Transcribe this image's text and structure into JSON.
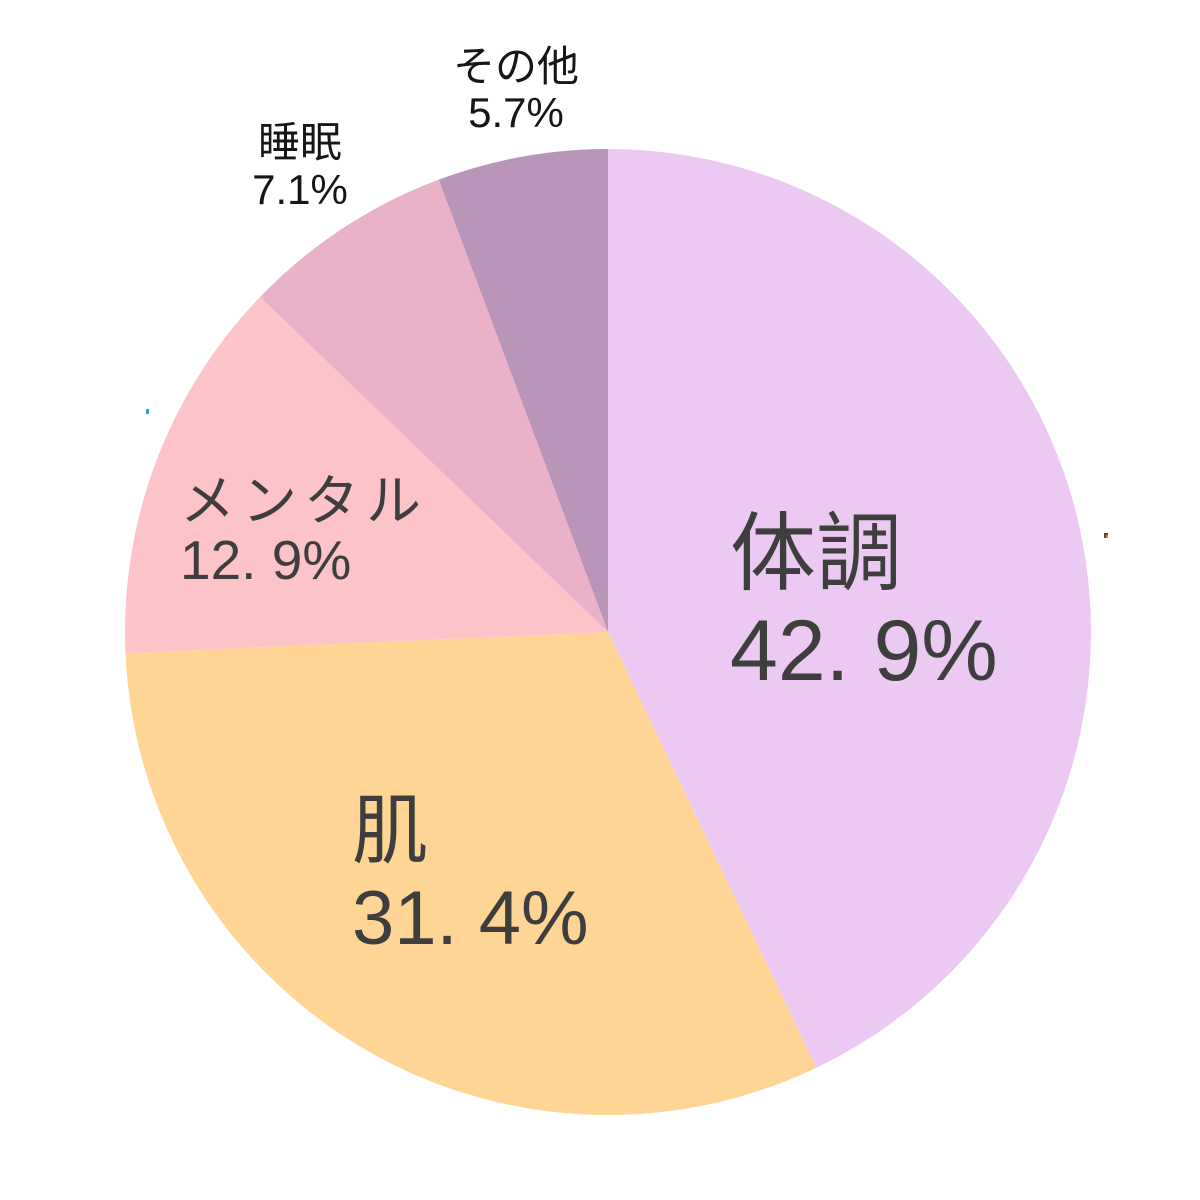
{
  "chart_data": {
    "type": "pie",
    "title": "",
    "categories": [
      "体調",
      "肌",
      "メンタル",
      "睡眠",
      "その他"
    ],
    "values": [
      42.9,
      31.4,
      12.9,
      7.1,
      5.7
    ],
    "unit": "%",
    "start_angle_deg": 0,
    "direction": "clockwise",
    "colors": [
      "#ecc9f2",
      "#fed594",
      "#fcc4c8",
      "#e9b2c9",
      "#b996b9"
    ],
    "legend": "none",
    "labels": [
      {
        "name": "体調",
        "value_text": "42. 9%",
        "placement": "inside"
      },
      {
        "name": "肌",
        "value_text": "31. 4%",
        "placement": "inside"
      },
      {
        "name": "メンタル",
        "value_text": "12. 9%",
        "placement": "inside"
      },
      {
        "name": "睡眠",
        "value_text": "7.1%",
        "placement": "outside"
      },
      {
        "name": "その他",
        "value_text": "5.7%",
        "placement": "outside"
      }
    ],
    "label_text_colors": {
      "inside": "#3e3e3e",
      "outside": "#161616"
    }
  }
}
